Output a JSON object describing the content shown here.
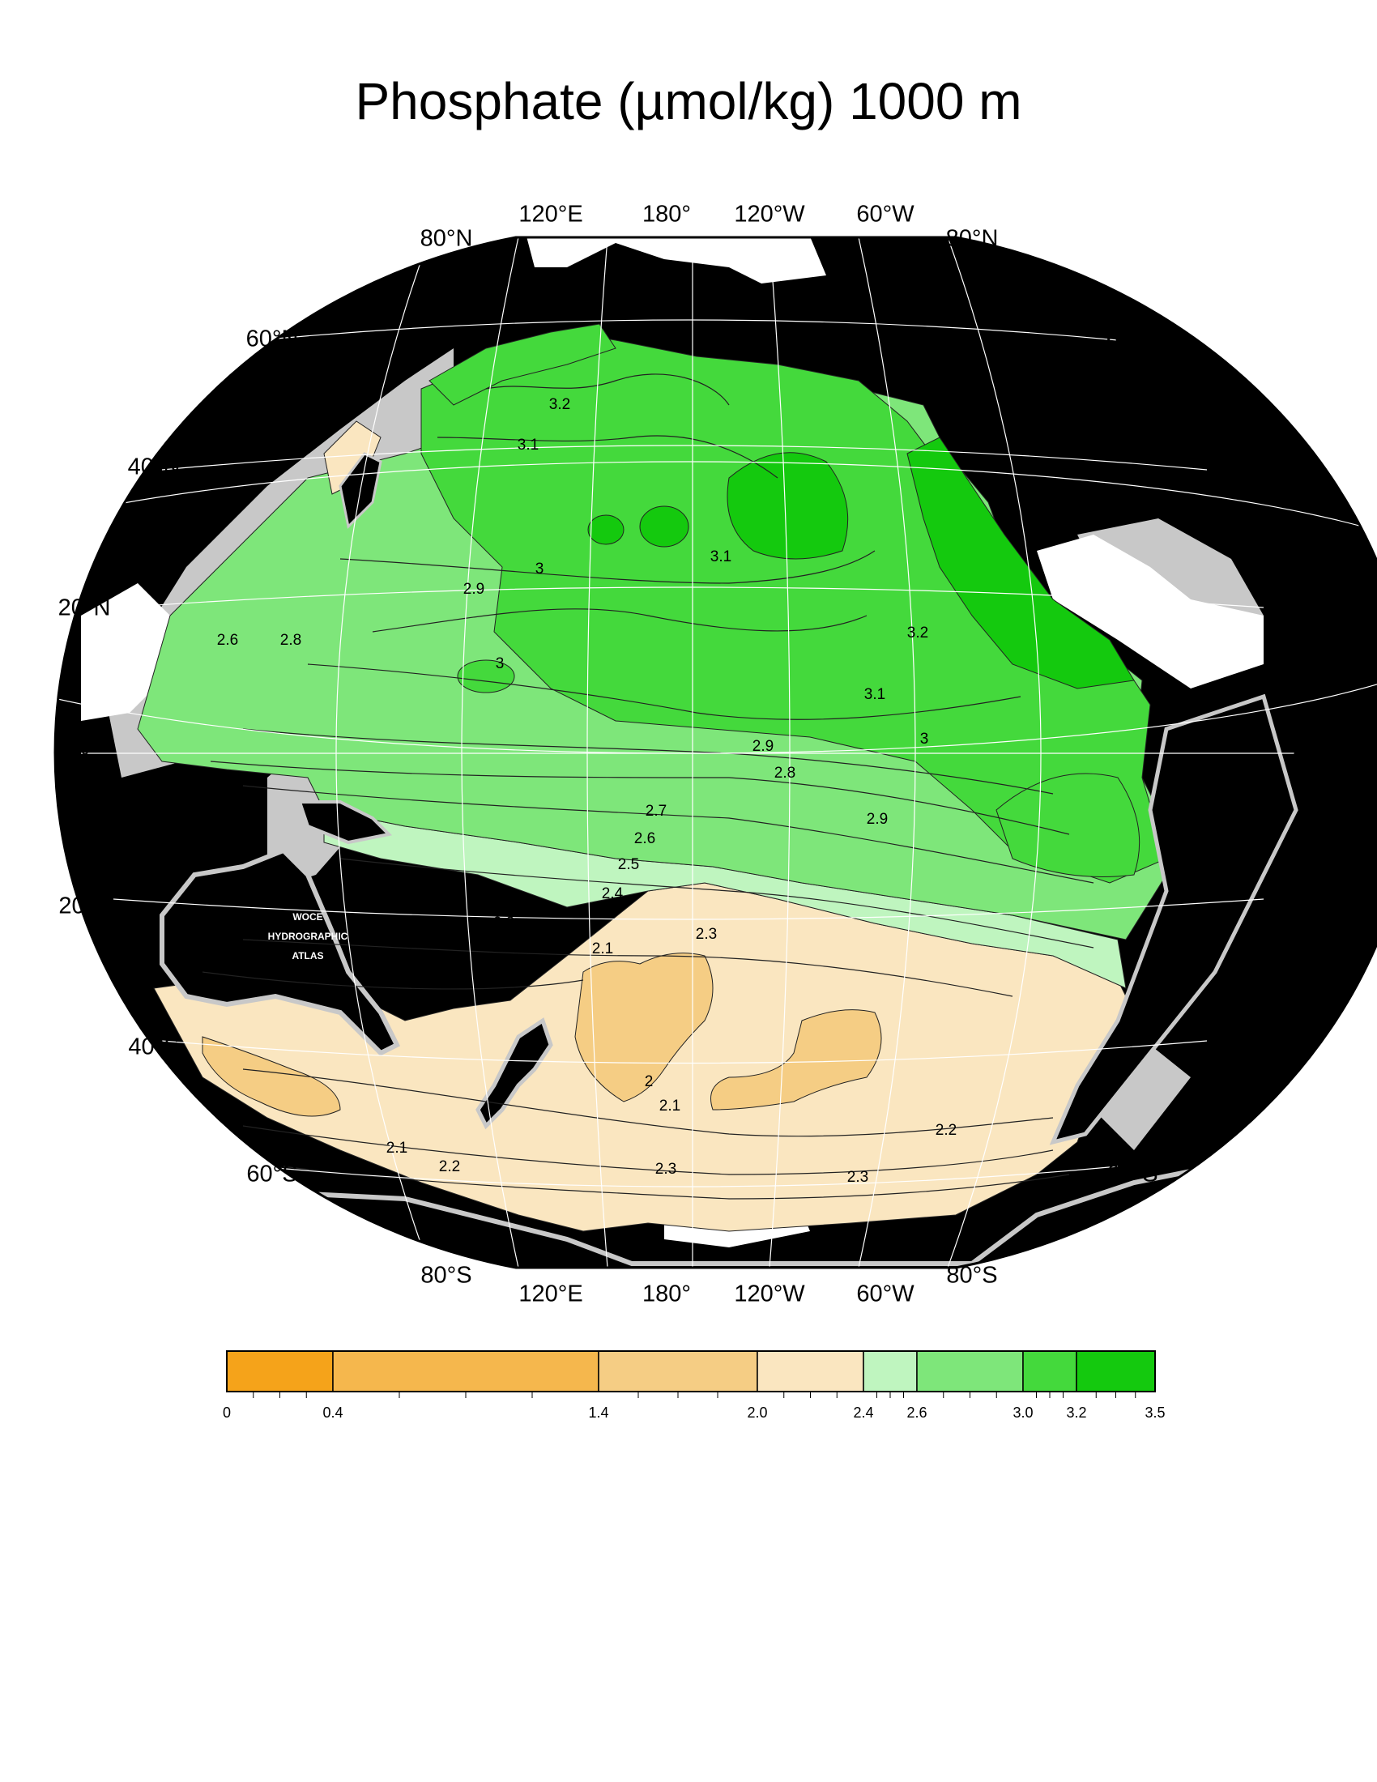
{
  "title": "Phosphate (µmol/kg) 1000 m",
  "watermark": [
    "WOCE",
    "HYDROGRAPHIC",
    "ATLAS"
  ],
  "lon_labels_top": [
    "120°E",
    "180°",
    "120°W",
    "60°W"
  ],
  "lon_labels_bottom": [
    "120°E",
    "180°",
    "120°W",
    "60°W"
  ],
  "lat_labels": [
    "80°N",
    "60°N",
    "40°N",
    "20°N",
    "0°",
    "20°S",
    "40°S",
    "60°S",
    "80°S"
  ],
  "contour_labels": [
    "3.2",
    "3.1",
    "3",
    "2.9",
    "2.6",
    "2.8",
    "3",
    "3.1",
    "3.2",
    "3.1",
    "3",
    "2.9",
    "2.8",
    "2.7",
    "2.6",
    "2.5",
    "2.4",
    "2.3",
    "2.2",
    "2.1",
    "2.9",
    "2",
    "2.1",
    "2.2",
    "2.1",
    "2.2",
    "2.3",
    "2.3"
  ],
  "colorbar": {
    "ticks": [
      "0",
      "0.4",
      "1.4",
      "2.0",
      "2.4",
      "2.6",
      "3.0",
      "3.2",
      "3.5"
    ],
    "colors": [
      "#f5a31a",
      "#f5b74d",
      "#f5cd84",
      "#fae6c0",
      "#bff5bf",
      "#7ee67a",
      "#44d93c",
      "#14c90e"
    ]
  },
  "colors": {
    "land": "#000000",
    "shelf": "#c8c8c8",
    "ice": "#ffffff"
  }
}
